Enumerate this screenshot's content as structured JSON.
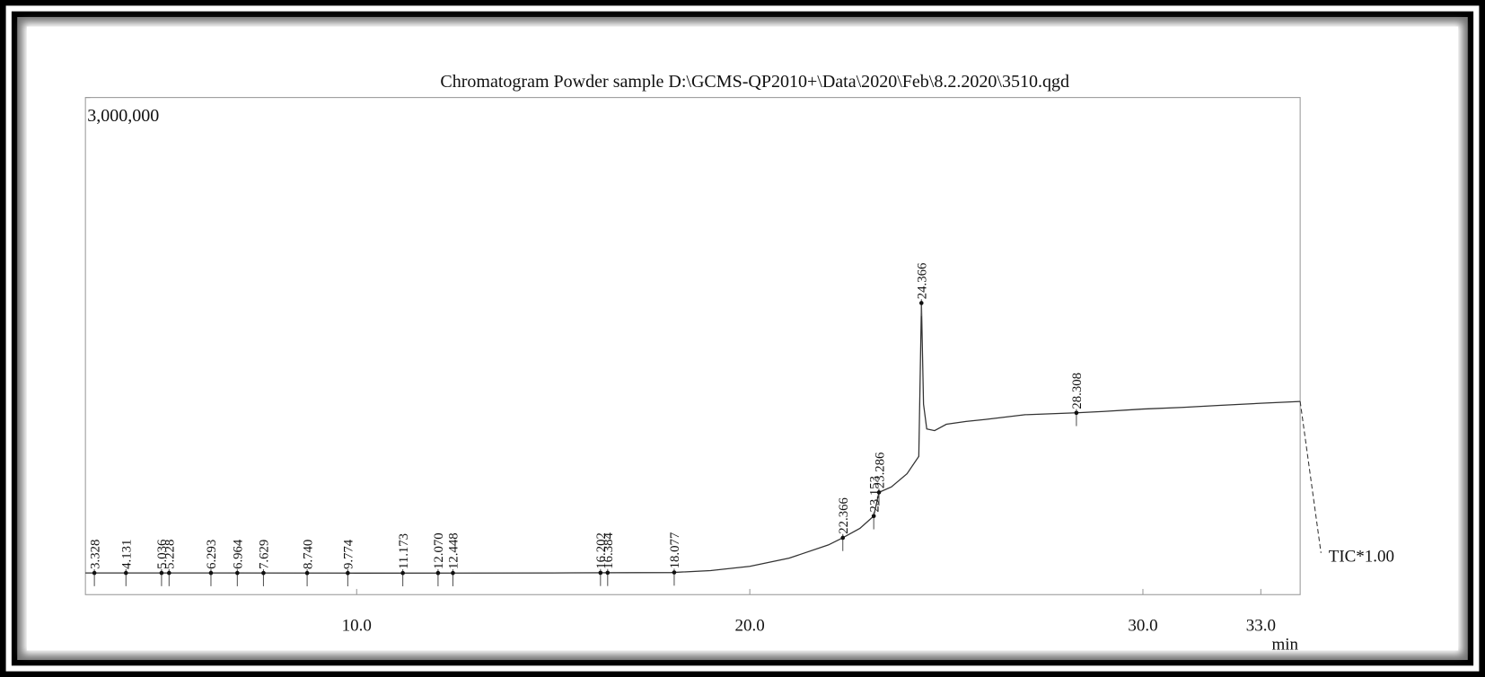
{
  "chart_data": {
    "type": "line",
    "title": "Chromatogram Powder sample D:\\GCMS-QP2010+\\Data\\2020\\Feb\\8.2.2020\\3510.qgd",
    "x_label": "min",
    "signal_label": "TIC*1.00",
    "color": "#333333",
    "x": [
      3.1,
      5,
      10,
      15,
      18,
      19,
      20,
      21,
      22,
      22.366,
      22.8,
      23.153,
      23.286,
      23.6,
      24.0,
      24.3,
      24.366,
      24.42,
      24.5,
      24.7,
      25.0,
      25.5,
      26,
      27,
      28,
      28.308,
      29,
      30,
      31,
      32,
      33,
      34
    ],
    "values": [
      131000,
      131000,
      130000,
      131000,
      133000,
      145000,
      171000,
      220000,
      300000,
      343000,
      400000,
      474000,
      617000,
      650000,
      730000,
      834000,
      1760000,
      1150000,
      1000000,
      990000,
      1028000,
      1045000,
      1057000,
      1086000,
      1095000,
      1097000,
      1105000,
      1120000,
      1130000,
      1143000,
      1155000,
      1166000
    ],
    "xlim": [
      3.1,
      34.0
    ],
    "ylim": [
      0,
      3000000
    ],
    "xticks": [
      {
        "value": 10,
        "label": "10.0"
      },
      {
        "value": 20,
        "label": "20.0"
      },
      {
        "value": 30,
        "label": "30.0"
      },
      {
        "value": 33,
        "label": "33.0"
      }
    ],
    "yticks": [
      {
        "value": 3000000,
        "label": "3,000,000"
      }
    ],
    "peaks": {
      "x": [
        3.328,
        4.131,
        5.036,
        5.228,
        6.293,
        6.964,
        7.629,
        8.74,
        9.774,
        11.173,
        12.07,
        12.448,
        16.202,
        16.384,
        18.077,
        22.366,
        23.153,
        23.286,
        24.366,
        28.308
      ],
      "labels": [
        "3.328",
        "4.131",
        "5.036",
        "5.228",
        "6.293",
        "6.964",
        "7.629",
        "8.740",
        "9.774",
        "11.173",
        "12.070",
        "12.448",
        "16.202",
        "16.384",
        "18.077",
        "22.366",
        "23.153",
        "23.286",
        "24.366",
        "28.308"
      ]
    }
  }
}
